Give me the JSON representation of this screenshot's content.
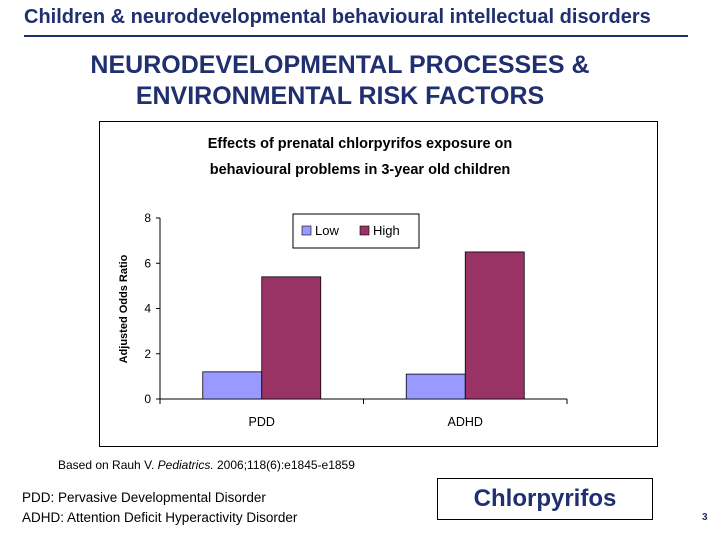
{
  "header": {
    "title": "Children & neurodevelopmental behavioural intellectual disorders"
  },
  "slide": {
    "title_line1": "NEURODEVELOPMENTAL PROCESSES &",
    "title_line2": "ENVIRONMENTAL RISK FACTORS"
  },
  "colors": {
    "low": "#9999ff",
    "high": "#993366",
    "accent": "#1f2f6f"
  },
  "chart_data": {
    "type": "bar",
    "title_line1": "Effects of prenatal chlorpyrifos exposure on",
    "title_line2": "behavioural problems in 3-year old children",
    "categories": [
      "PDD",
      "ADHD"
    ],
    "series": [
      {
        "name": "Low",
        "values": [
          1.2,
          1.1
        ]
      },
      {
        "name": "High",
        "values": [
          5.4,
          6.5
        ]
      }
    ],
    "xlabel": "",
    "ylabel": "Adjusted Odds Ratio",
    "ylim": [
      0,
      8
    ],
    "yticks": [
      "0",
      "2",
      "4",
      "6",
      "8"
    ],
    "legend_position": "top-center",
    "grid": false
  },
  "reference": {
    "prefix": "Based on Rauh V. ",
    "journal": "Pediatrics.",
    "suffix": " 2006;118(6):e1845-e1859"
  },
  "abbreviations": [
    "PDD: Pervasive Developmental Disorder",
    "ADHD: Attention Deficit Hyperactivity Disorder"
  ],
  "chemical_label": "Chlorpyrifos",
  "page_number": "3"
}
